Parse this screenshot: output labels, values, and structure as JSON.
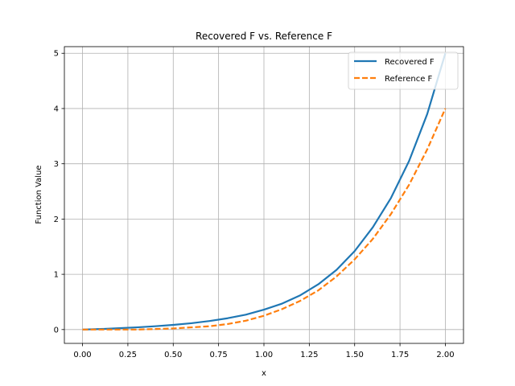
{
  "chart_data": {
    "type": "line",
    "title": "Recovered F vs. Reference F",
    "xlabel": "x",
    "ylabel": "Function Value",
    "xlim": [
      -0.1,
      2.1
    ],
    "ylim": [
      -0.25,
      5.12
    ],
    "xticks": [
      0.0,
      0.25,
      0.5,
      0.75,
      1.0,
      1.25,
      1.5,
      1.75,
      2.0
    ],
    "xtick_labels": [
      "0.00",
      "0.25",
      "0.50",
      "0.75",
      "1.00",
      "1.25",
      "1.50",
      "1.75",
      "2.00"
    ],
    "yticks": [
      0,
      1,
      2,
      3,
      4,
      5
    ],
    "ytick_labels": [
      "0",
      "1",
      "2",
      "3",
      "4",
      "5"
    ],
    "grid": true,
    "legend_position": "top-right",
    "series": [
      {
        "name": "Recovered F",
        "color": "#1f77b4",
        "style": "solid",
        "x": [
          0.0,
          0.1,
          0.2,
          0.3,
          0.4,
          0.5,
          0.6,
          0.7,
          0.8,
          0.9,
          1.0,
          1.1,
          1.2,
          1.3,
          1.4,
          1.5,
          1.6,
          1.7,
          1.8,
          1.9,
          2.0
        ],
        "y": [
          0.0,
          0.01,
          0.025,
          0.04,
          0.06,
          0.085,
          0.115,
          0.155,
          0.205,
          0.27,
          0.36,
          0.47,
          0.62,
          0.82,
          1.08,
          1.42,
          1.85,
          2.38,
          3.05,
          3.9,
          5.0
        ]
      },
      {
        "name": "Reference F",
        "color": "#ff7f0e",
        "style": "dashed",
        "x": [
          0.0,
          0.1,
          0.2,
          0.3,
          0.4,
          0.5,
          0.6,
          0.7,
          0.8,
          0.9,
          1.0,
          1.1,
          1.2,
          1.3,
          1.4,
          1.5,
          1.6,
          1.7,
          1.8,
          1.9,
          2.0
        ],
        "y": [
          0.0,
          0.0,
          0.0,
          0.0,
          0.01,
          0.02,
          0.04,
          0.06,
          0.1,
          0.16,
          0.25,
          0.37,
          0.52,
          0.71,
          0.96,
          1.27,
          1.64,
          2.09,
          2.62,
          3.26,
          4.0
        ]
      }
    ]
  }
}
